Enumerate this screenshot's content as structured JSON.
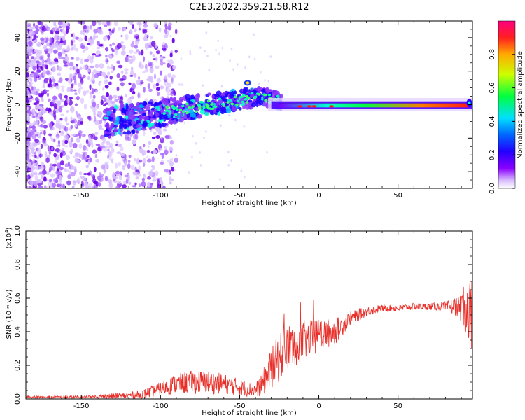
{
  "title": "C2E3.2022.359.21.58.R12",
  "colors": {
    "line": "#e8302a",
    "axis": "#000000",
    "background": "#ffffff"
  },
  "chart_data": [
    {
      "type": "heatmap",
      "name": "spectrogram",
      "xlabel": "Height of straight line (km)",
      "ylabel": "Frequency (Hz)",
      "xlim": [
        -185,
        97
      ],
      "ylim": [
        -50,
        50
      ],
      "xticks": [
        -150,
        -100,
        -50,
        0,
        50
      ],
      "yticks": [
        -40,
        -20,
        0,
        20,
        40
      ],
      "description_of_signal": "noise at low heights, signal ridge near 0 Hz from about -130 km, strong narrow line from -30 km to 95 km",
      "ridge": {
        "x": [
          -130,
          -100,
          -70,
          -50,
          -35,
          -20,
          0,
          30,
          60,
          95
        ],
        "y": [
          -10,
          -5,
          0,
          3,
          5,
          1,
          -1,
          -1,
          0,
          0
        ]
      }
    },
    {
      "type": "colorbar",
      "name": "amplitude-scale",
      "label": "Normalized spectral amplitude",
      "range": [
        0.0,
        1.0
      ],
      "ticks": [
        0.0,
        0.2,
        0.4,
        0.6,
        0.8
      ],
      "tick_labels": [
        "0.0",
        "0.2",
        "0.4",
        "0.6",
        "0.8"
      ]
    },
    {
      "type": "line",
      "name": "snr",
      "xlabel": "Height of straight line (km)",
      "ylabel": "SNR (10 * v/v)",
      "scale_label": "(x10",
      "scale_exponent": "4",
      "scale_suffix": ")",
      "xlim": [
        -185,
        97
      ],
      "ylim": [
        0.0,
        1.0
      ],
      "xticks": [
        -150,
        -100,
        -50,
        0,
        50
      ],
      "yticks": [
        0.0,
        0.2,
        0.4,
        0.6,
        0.8,
        1.0
      ],
      "ytick_labels": [
        "0.0",
        "0.2",
        "0.4",
        "0.6",
        "0.8",
        "1.0"
      ],
      "envelope": {
        "x": [
          -185,
          -150,
          -120,
          -110,
          -100,
          -90,
          -80,
          -70,
          -60,
          -50,
          -40,
          -35,
          -30,
          -25,
          -20,
          -15,
          -10,
          0,
          10,
          20,
          30,
          40,
          50,
          60,
          70,
          80,
          88,
          92,
          95,
          97
        ],
        "mean": [
          0.01,
          0.01,
          0.02,
          0.03,
          0.06,
          0.09,
          0.1,
          0.1,
          0.09,
          0.07,
          0.05,
          0.1,
          0.18,
          0.25,
          0.3,
          0.32,
          0.35,
          0.38,
          0.4,
          0.48,
          0.52,
          0.54,
          0.54,
          0.55,
          0.55,
          0.55,
          0.55,
          0.52,
          0.5,
          0.4
        ],
        "spread": [
          0.01,
          0.01,
          0.02,
          0.03,
          0.04,
          0.06,
          0.07,
          0.07,
          0.06,
          0.05,
          0.04,
          0.08,
          0.12,
          0.15,
          0.15,
          0.13,
          0.12,
          0.1,
          0.08,
          0.04,
          0.03,
          0.02,
          0.02,
          0.02,
          0.02,
          0.03,
          0.06,
          0.1,
          0.2,
          0.35
        ]
      }
    }
  ]
}
